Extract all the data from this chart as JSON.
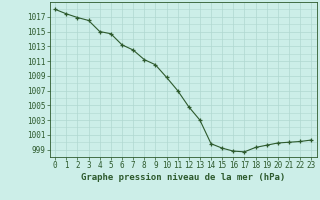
{
  "x": [
    0,
    1,
    2,
    3,
    4,
    5,
    6,
    7,
    8,
    9,
    10,
    11,
    12,
    13,
    14,
    15,
    16,
    17,
    18,
    19,
    20,
    21,
    22,
    23
  ],
  "y": [
    1018.0,
    1017.4,
    1016.9,
    1016.5,
    1015.0,
    1014.7,
    1013.2,
    1012.5,
    1011.2,
    1010.5,
    1008.8,
    1007.0,
    1004.8,
    1003.0,
    999.8,
    999.2,
    998.8,
    998.7,
    999.3,
    999.6,
    999.9,
    1000.0,
    1000.1,
    1000.3
  ],
  "bg_color": "#cceee8",
  "grid_color": "#b0d8d0",
  "line_color": "#2d5a2d",
  "marker_color": "#2d5a2d",
  "text_color": "#2d5a2d",
  "xlabel": "Graphe pression niveau de la mer (hPa)",
  "ylim_min": 998.0,
  "ylim_max": 1019.0,
  "yticks": [
    999,
    1001,
    1003,
    1005,
    1007,
    1009,
    1011,
    1013,
    1015,
    1017
  ],
  "xticks": [
    0,
    1,
    2,
    3,
    4,
    5,
    6,
    7,
    8,
    9,
    10,
    11,
    12,
    13,
    14,
    15,
    16,
    17,
    18,
    19,
    20,
    21,
    22,
    23
  ],
  "tick_fontsize": 5.5,
  "xlabel_fontsize": 6.5
}
